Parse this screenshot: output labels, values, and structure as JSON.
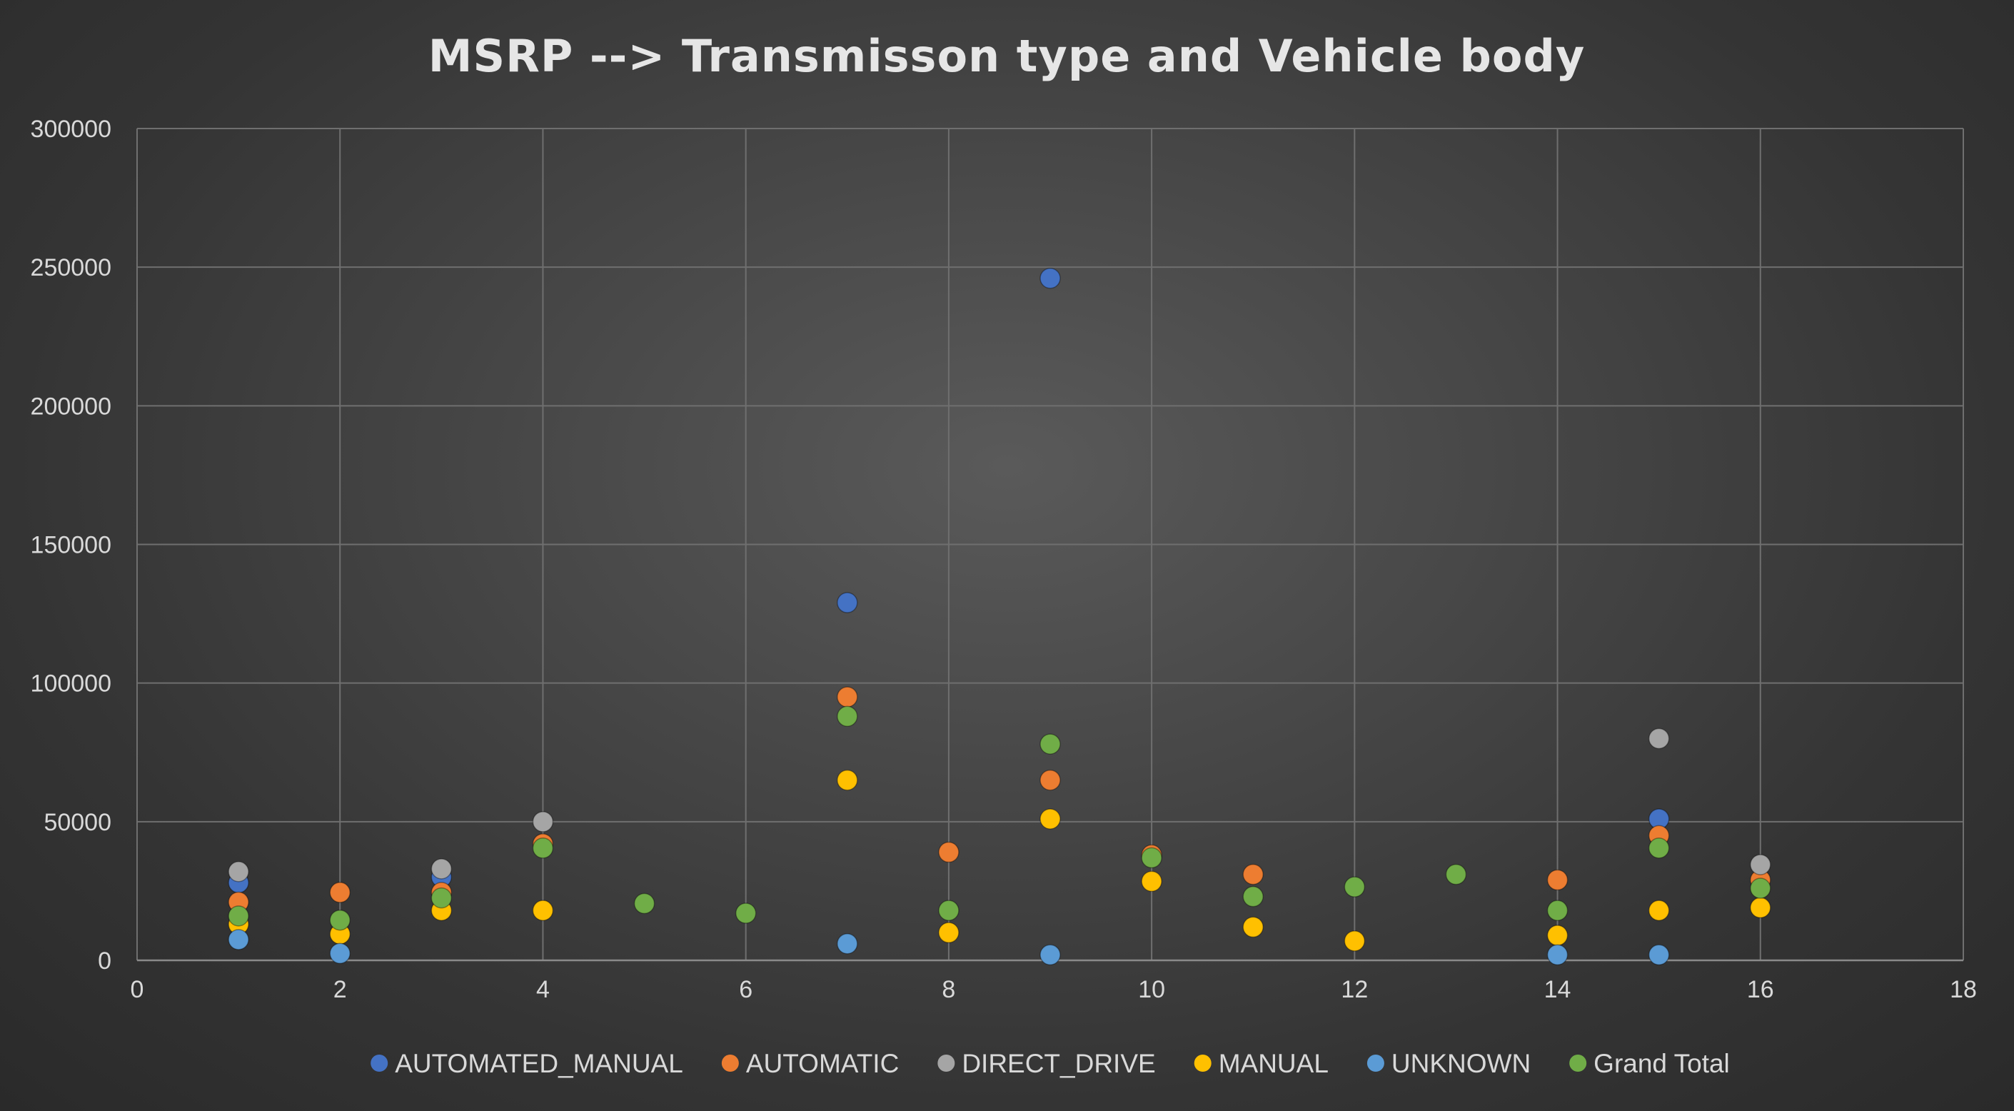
{
  "chart_data": {
    "type": "scatter",
    "title": "MSRP --> Transmisson type and Vehicle body",
    "xlim": [
      0,
      18
    ],
    "ylim": [
      0,
      300000
    ],
    "x_ticks": [
      0,
      2,
      4,
      6,
      8,
      10,
      12,
      14,
      16,
      18
    ],
    "y_ticks": [
      0,
      50000,
      100000,
      150000,
      200000,
      250000,
      300000
    ],
    "grid": true,
    "legend_position": "bottom",
    "series": [
      {
        "name": "AUTOMATED_MANUAL",
        "color": "#4472C4",
        "points": [
          [
            1,
            28000
          ],
          [
            3,
            30000
          ],
          [
            7,
            129000
          ],
          [
            9,
            246000
          ],
          [
            15,
            51000
          ]
        ]
      },
      {
        "name": "AUTOMATIC",
        "color": "#ED7D31",
        "points": [
          [
            1,
            21000
          ],
          [
            2,
            24500
          ],
          [
            3,
            24500
          ],
          [
            4,
            42000
          ],
          [
            7,
            95000
          ],
          [
            8,
            39000
          ],
          [
            9,
            65000
          ],
          [
            10,
            38000
          ],
          [
            11,
            31000
          ],
          [
            14,
            29000
          ],
          [
            15,
            45000
          ],
          [
            16,
            29000
          ]
        ]
      },
      {
        "name": "DIRECT_DRIVE",
        "color": "#A5A5A5",
        "points": [
          [
            1,
            32000
          ],
          [
            3,
            33000
          ],
          [
            4,
            50000
          ],
          [
            15,
            80000
          ],
          [
            16,
            34500
          ]
        ]
      },
      {
        "name": "MANUAL",
        "color": "#FFC000",
        "points": [
          [
            1,
            13000
          ],
          [
            2,
            9500
          ],
          [
            3,
            18000
          ],
          [
            4,
            18000
          ],
          [
            7,
            65000
          ],
          [
            8,
            10000
          ],
          [
            9,
            51000
          ],
          [
            10,
            28500
          ],
          [
            11,
            12000
          ],
          [
            12,
            7000
          ],
          [
            14,
            9000
          ],
          [
            15,
            18000
          ],
          [
            16,
            19000
          ]
        ]
      },
      {
        "name": "UNKNOWN",
        "color": "#5B9BD5",
        "points": [
          [
            1,
            7500
          ],
          [
            2,
            2500
          ],
          [
            7,
            6000
          ],
          [
            9,
            2000
          ],
          [
            14,
            2000
          ],
          [
            15,
            2000
          ]
        ]
      },
      {
        "name": "Grand Total",
        "color": "#70AD47",
        "points": [
          [
            1,
            16000
          ],
          [
            2,
            14500
          ],
          [
            3,
            22500
          ],
          [
            4,
            40500
          ],
          [
            5,
            20500
          ],
          [
            6,
            17000
          ],
          [
            7,
            88000
          ],
          [
            8,
            18000
          ],
          [
            9,
            78000
          ],
          [
            10,
            37000
          ],
          [
            11,
            23000
          ],
          [
            12,
            26500
          ],
          [
            13,
            31000
          ],
          [
            14,
            18000
          ],
          [
            15,
            40500
          ],
          [
            16,
            26000
          ]
        ]
      }
    ]
  }
}
